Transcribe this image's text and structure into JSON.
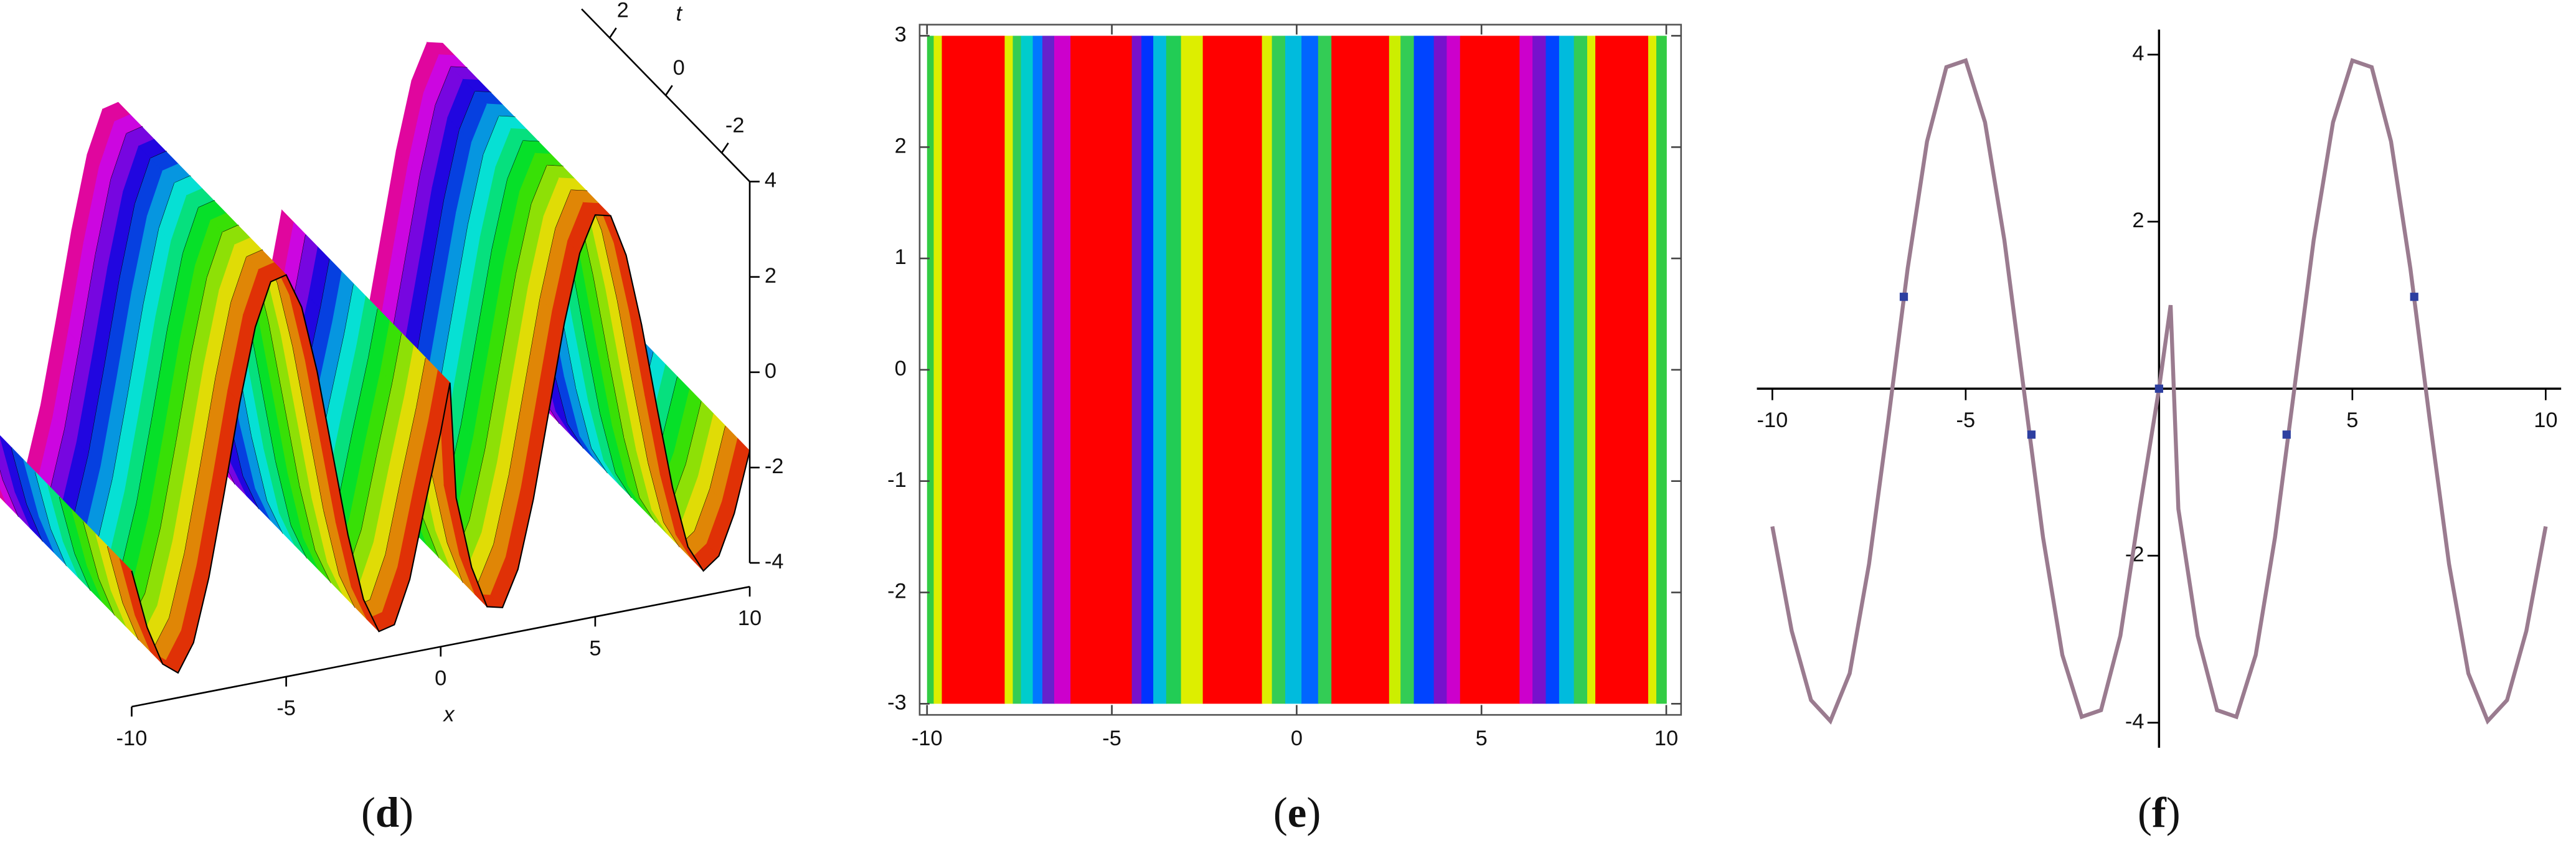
{
  "chart_data": [
    {
      "type": "surface3d",
      "x": [
        -10,
        -9.5,
        -9,
        -8.5,
        -8,
        -7.5,
        -7,
        -6.5,
        -6,
        -5.5,
        -5,
        -4.5,
        -4,
        -3.5,
        -3,
        -2.5,
        -2,
        -1.5,
        -1,
        -0.5,
        0,
        0.3,
        0.5,
        1,
        1.5,
        2,
        2.5,
        3,
        3.5,
        4,
        4.5,
        5,
        5.5,
        6,
        6.5,
        7,
        7.5,
        8,
        8.5,
        9,
        9.5,
        10
      ],
      "values": [
        -1.65,
        -2.9,
        -3.73,
        -3.98,
        -3.41,
        -2.1,
        -0.37,
        1.44,
        2.96,
        3.85,
        3.93,
        3.19,
        1.78,
        0,
        -1.78,
        -3.19,
        -3.93,
        -3.85,
        -2.96,
        -1.44,
        0,
        1,
        -1.44,
        -2.96,
        -3.85,
        -3.93,
        -3.19,
        -1.78,
        0,
        1.78,
        3.19,
        3.93,
        3.85,
        2.96,
        1.44,
        -0.37,
        -2.1,
        -3.41,
        -3.98,
        -3.73,
        -2.9,
        -1.65
      ],
      "xlim": [
        -10,
        10
      ],
      "tlim": [
        -3,
        3
      ],
      "zlim": [
        -4,
        4
      ],
      "xticks": [
        -10,
        -5,
        0,
        5,
        10
      ],
      "zticks": [
        4,
        2,
        0,
        -2,
        -4
      ],
      "tticks": [
        2,
        0,
        -2
      ],
      "xlabel": "x",
      "tlabel": "t",
      "caption": [
        "(",
        "d",
        ")"
      ]
    },
    {
      "type": "density",
      "bins": [
        -10,
        -9.82,
        -9.6,
        -7.9,
        -7.68,
        -7.46,
        -7.14,
        -6.88,
        -6.56,
        -6.12,
        -4.46,
        -4.2,
        -3.88,
        -3.53,
        -3.13,
        -2.54,
        -0.94,
        -0.67,
        -0.31,
        0.13,
        0.58,
        0.94,
        2.5,
        2.81,
        3.17,
        3.71,
        4.06,
        4.42,
        6.03,
        6.38,
        6.74,
        7.1,
        7.5,
        7.86,
        8.08,
        9.51,
        9.73,
        10
      ],
      "colors": [
        "#33cc44",
        "#ddee00",
        "#ff0000",
        "#ddee00",
        "#33cc55",
        "#00cccc",
        "#0077ff",
        "#6622cc",
        "#cc00cc",
        "#ff0000",
        "#7711cc",
        "#0033ff",
        "#00bbdd",
        "#22cc55",
        "#ddee00",
        "#ff0000",
        "#ddee00",
        "#33cc55",
        "#00bbdd",
        "#0066ff",
        "#33cc55",
        "#ff0000",
        "#ccee00",
        "#33cc55",
        "#0044ff",
        "#7711cc",
        "#cc00cc",
        "#ff0000",
        "#cc00cc",
        "#7711cc",
        "#0044ff",
        "#00bbdd",
        "#33cc55",
        "#ddee00",
        "#ff0000",
        "#ddee00",
        "#33cc44"
      ],
      "y_extent": [
        -3,
        3
      ],
      "xlim": [
        -10.2,
        10.4
      ],
      "ylim": [
        -3.1,
        3.1
      ],
      "xticks": [
        -10,
        -5,
        0,
        5,
        10
      ],
      "yticks": [
        3,
        2,
        1,
        0,
        -1,
        -2,
        -3
      ],
      "caption": [
        "(",
        "e",
        ")"
      ]
    },
    {
      "type": "line",
      "x": [
        -10,
        -9.5,
        -9,
        -8.5,
        -8,
        -7.5,
        -7,
        -6.5,
        -6,
        -5.5,
        -5,
        -4.5,
        -4,
        -3.5,
        -3,
        -2.5,
        -2,
        -1.5,
        -1,
        -0.5,
        0,
        0.3,
        0.5,
        1,
        1.5,
        2,
        2.5,
        3,
        3.5,
        4,
        4.5,
        5,
        5.5,
        6,
        6.5,
        7,
        7.5,
        8,
        8.5,
        9,
        9.5,
        10
      ],
      "values": [
        -1.65,
        -2.9,
        -3.73,
        -3.98,
        -3.41,
        -2.1,
        -0.37,
        1.44,
        2.96,
        3.85,
        3.93,
        3.19,
        1.78,
        0,
        -1.78,
        -3.19,
        -3.93,
        -3.85,
        -2.96,
        -1.44,
        0,
        1,
        -1.44,
        -2.96,
        -3.85,
        -3.93,
        -3.19,
        -1.78,
        0,
        1.78,
        3.19,
        3.93,
        3.85,
        2.96,
        1.44,
        -0.37,
        -2.1,
        -3.41,
        -3.98,
        -3.73,
        -2.9,
        -1.65
      ],
      "color": "#9a7b8f",
      "points": {
        "x": [
          -6.6,
          -3.3,
          0,
          3.3,
          6.6
        ],
        "y": [
          1.1,
          -0.55,
          0,
          -0.55,
          1.1
        ],
        "color": "#2d3fa0"
      },
      "xlim": [
        -10.4,
        10.4
      ],
      "ylim": [
        -4.3,
        4.3
      ],
      "xticks": [
        -10,
        -5,
        5,
        10
      ],
      "yticks": [
        4,
        2,
        -2,
        -4
      ],
      "caption": [
        "(",
        "f",
        ")"
      ]
    }
  ]
}
